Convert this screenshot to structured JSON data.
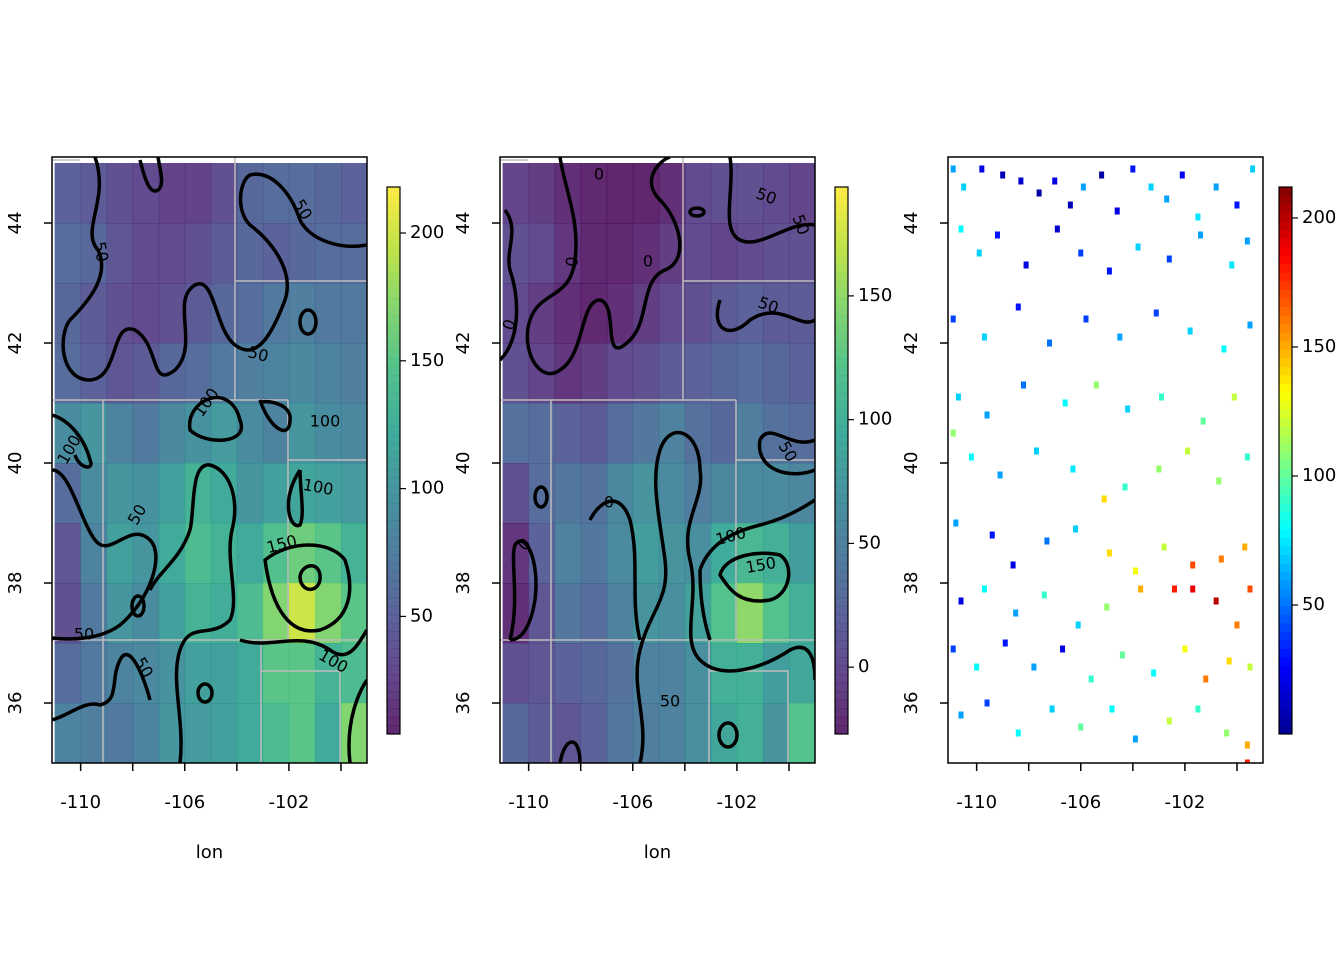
{
  "chart_data": [
    {
      "type": "heatmap",
      "xlabel": "lon",
      "x": [
        -110.5,
        -109.5,
        -108.5,
        -107.5,
        -106.5,
        -105.5,
        -104.5,
        -103.5,
        -102.5,
        -101.5,
        -100.5,
        -99.5
      ],
      "y": [
        44.5,
        43.5,
        42.5,
        41.5,
        40.5,
        39.5,
        38.5,
        37.5,
        36.5,
        35.5
      ],
      "z": [
        [
          50,
          45,
          35,
          30,
          25,
          25,
          35,
          55,
          60,
          60,
          55,
          50
        ],
        [
          60,
          55,
          40,
          30,
          30,
          35,
          45,
          55,
          50,
          55,
          60,
          60
        ],
        [
          55,
          45,
          35,
          30,
          35,
          45,
          55,
          60,
          70,
          75,
          70,
          70
        ],
        [
          60,
          50,
          40,
          45,
          55,
          60,
          70,
          75,
          80,
          85,
          80,
          75
        ],
        [
          90,
          100,
          80,
          70,
          85,
          95,
          105,
          90,
          80,
          100,
          90,
          85
        ],
        [
          60,
          90,
          100,
          95,
          110,
          130,
          120,
          100,
          110,
          115,
          110,
          105
        ],
        [
          40,
          80,
          110,
          100,
          120,
          140,
          130,
          120,
          145,
          160,
          150,
          130
        ],
        [
          35,
          70,
          100,
          90,
          110,
          130,
          125,
          140,
          170,
          200,
          170,
          150
        ],
        [
          60,
          70,
          80,
          85,
          95,
          110,
          110,
          120,
          150,
          150,
          130,
          140
        ],
        [
          80,
          75,
          70,
          80,
          100,
          105,
          110,
          120,
          140,
          150,
          120,
          170
        ]
      ],
      "colors": [
        "#440154",
        "#482878",
        "#3e4989",
        "#31688e",
        "#26828e",
        "#1f9e89",
        "#35b779",
        "#6ece58",
        "#b5de2b",
        "#fde725"
      ],
      "zlim": [
        4,
        218
      ],
      "zticks": [
        50,
        100,
        150,
        200
      ],
      "xlim": [
        -111.1,
        -99.0
      ],
      "ylim": [
        35.0,
        45.1
      ],
      "xticks": [
        -110,
        -106,
        -102
      ],
      "xminor": [
        -108,
        -104,
        -100
      ],
      "yticks": [
        36,
        38,
        40,
        42,
        44
      ],
      "contour_levels": [
        50,
        100,
        150
      ]
    },
    {
      "type": "heatmap",
      "xlabel": "lon",
      "x": [
        -110.5,
        -109.5,
        -108.5,
        -107.5,
        -106.5,
        -105.5,
        -104.5,
        -103.5,
        -102.5,
        -101.5,
        -100.5,
        -99.5
      ],
      "y": [
        44.5,
        43.5,
        42.5,
        41.5,
        40.5,
        39.5,
        38.5,
        37.5,
        36.5,
        35.5
      ],
      "z": [
        [
          -5,
          -10,
          -20,
          -25,
          -30,
          -30,
          -20,
          0,
          5,
          5,
          0,
          -5
        ],
        [
          5,
          0,
          -15,
          -25,
          -25,
          -20,
          -10,
          0,
          -5,
          0,
          5,
          5
        ],
        [
          0,
          -10,
          -20,
          -25,
          -20,
          -10,
          0,
          5,
          15,
          20,
          15,
          15
        ],
        [
          5,
          -5,
          -15,
          -10,
          0,
          5,
          15,
          20,
          25,
          30,
          25,
          20
        ],
        [
          35,
          30,
          20,
          15,
          30,
          40,
          50,
          35,
          25,
          45,
          35,
          30
        ],
        [
          5,
          30,
          40,
          35,
          55,
          70,
          60,
          45,
          55,
          60,
          60,
          55
        ],
        [
          -15,
          20,
          50,
          40,
          60,
          80,
          70,
          65,
          95,
          110,
          100,
          80
        ],
        [
          -20,
          10,
          40,
          30,
          50,
          70,
          65,
          85,
          120,
          150,
          120,
          100
        ],
        [
          5,
          10,
          20,
          25,
          35,
          50,
          50,
          65,
          100,
          100,
          80,
          90
        ],
        [
          25,
          15,
          10,
          20,
          40,
          45,
          50,
          65,
          90,
          100,
          70,
          120
        ]
      ],
      "colors": [
        "#440154",
        "#482878",
        "#3e4989",
        "#31688e",
        "#26828e",
        "#1f9e89",
        "#35b779",
        "#6ece58",
        "#b5de2b",
        "#fde725"
      ],
      "zlim": [
        -27,
        194
      ],
      "zticks": [
        0,
        50,
        100,
        150
      ],
      "xlim": [
        -111.1,
        -99.0
      ],
      "ylim": [
        35.0,
        45.1
      ],
      "xticks": [
        -110,
        -106,
        -102
      ],
      "xminor": [
        -108,
        -104,
        -100
      ],
      "yticks": [
        36,
        38,
        40,
        42,
        44
      ],
      "contour_levels": [
        0,
        50,
        100,
        150
      ]
    },
    {
      "type": "points",
      "x": [
        -110.9,
        -110.5,
        -109.8,
        -109.0,
        -108.3,
        -107.6,
        -107.0,
        -106.4,
        -105.9,
        -105.2,
        -104.6,
        -104.0,
        -103.3,
        -102.7,
        -102.1,
        -101.5,
        -100.8,
        -100.0,
        -99.4,
        -110.6,
        -109.9,
        -109.2,
        -108.1,
        -106.9,
        -106.0,
        -104.9,
        -103.8,
        -102.6,
        -101.4,
        -100.2,
        -99.6,
        -110.9,
        -109.7,
        -108.4,
        -107.2,
        -105.8,
        -104.5,
        -103.1,
        -101.8,
        -100.5,
        -99.5,
        -110.7,
        -109.6,
        -108.2,
        -106.6,
        -105.4,
        -104.2,
        -102.9,
        -101.3,
        -100.1,
        -110.9,
        -110.2,
        -109.1,
        -107.7,
        -106.3,
        -105.1,
        -104.3,
        -103.0,
        -101.9,
        -100.7,
        -99.6,
        -110.8,
        -109.4,
        -108.6,
        -107.3,
        -106.2,
        -104.9,
        -103.9,
        -102.8,
        -101.7,
        -100.6,
        -99.7,
        -110.6,
        -109.7,
        -108.5,
        -107.4,
        -106.1,
        -105.0,
        -103.7,
        -102.4,
        -101.7,
        -100.8,
        -100.0,
        -99.5,
        -110.9,
        -110.0,
        -108.9,
        -107.8,
        -106.7,
        -105.6,
        -104.4,
        -103.2,
        -102.0,
        -101.2,
        -100.3,
        -99.5,
        -110.6,
        -109.6,
        -108.4,
        -107.1,
        -106.0,
        -104.8,
        -103.9,
        -102.6,
        -101.5,
        -100.4,
        -99.6,
        -99.6
      ],
      "y": [
        44.9,
        44.6,
        44.9,
        44.8,
        44.7,
        44.5,
        44.7,
        44.3,
        44.6,
        44.8,
        44.2,
        44.9,
        44.6,
        44.4,
        44.8,
        44.1,
        44.6,
        44.3,
        44.9,
        43.9,
        43.5,
        43.8,
        43.3,
        43.9,
        43.5,
        43.2,
        43.6,
        43.4,
        43.8,
        43.3,
        43.7,
        42.4,
        42.1,
        42.6,
        42.0,
        42.4,
        42.1,
        42.5,
        42.2,
        41.9,
        42.3,
        41.1,
        40.8,
        41.3,
        41.0,
        41.3,
        40.9,
        41.1,
        40.7,
        41.1,
        40.5,
        40.1,
        39.8,
        40.2,
        39.9,
        39.4,
        39.6,
        39.9,
        40.2,
        39.7,
        40.1,
        39.0,
        38.8,
        38.3,
        38.7,
        38.9,
        38.5,
        38.2,
        38.6,
        38.3,
        38.4,
        38.6,
        37.7,
        37.9,
        37.5,
        37.8,
        37.3,
        37.6,
        37.9,
        37.9,
        37.9,
        37.7,
        37.3,
        37.9,
        36.9,
        36.6,
        37.0,
        36.6,
        36.9,
        36.4,
        36.8,
        36.5,
        36.9,
        36.4,
        36.7,
        36.6,
        35.8,
        36.0,
        35.5,
        35.9,
        35.6,
        35.9,
        35.4,
        35.7,
        35.9,
        35.5,
        35.3,
        35.0
      ],
      "values": [
        60,
        70,
        20,
        10,
        15,
        5,
        20,
        10,
        60,
        5,
        20,
        30,
        70,
        60,
        25,
        75,
        60,
        30,
        70,
        80,
        70,
        30,
        20,
        15,
        40,
        30,
        70,
        40,
        60,
        75,
        60,
        40,
        70,
        30,
        50,
        40,
        60,
        40,
        70,
        80,
        60,
        70,
        60,
        50,
        80,
        110,
        70,
        90,
        100,
        120,
        110,
        80,
        60,
        70,
        75,
        140,
        90,
        110,
        120,
        110,
        90,
        60,
        30,
        20,
        50,
        70,
        140,
        130,
        120,
        170,
        160,
        150,
        20,
        80,
        60,
        90,
        70,
        110,
        150,
        180,
        190,
        200,
        160,
        170,
        40,
        80,
        30,
        60,
        20,
        90,
        100,
        80,
        130,
        160,
        140,
        120,
        60,
        40,
        80,
        70,
        100,
        80,
        60,
        120,
        90,
        110,
        150,
        180
      ],
      "colors": [
        "#00008F",
        "#0000FF",
        "#0080FF",
        "#00FFFF",
        "#80FF80",
        "#FFFF00",
        "#FF8000",
        "#FF0000",
        "#800000"
      ],
      "zlim": [
        0,
        212
      ],
      "zticks": [
        50,
        100,
        150,
        200
      ],
      "xlim": [
        -111.1,
        -99.0
      ],
      "ylim": [
        35.0,
        45.1
      ],
      "xticks": [
        -110,
        -106,
        -102
      ],
      "xminor": [
        -108,
        -104,
        -100
      ],
      "yticks": [
        36,
        38,
        40,
        42,
        44
      ]
    }
  ]
}
